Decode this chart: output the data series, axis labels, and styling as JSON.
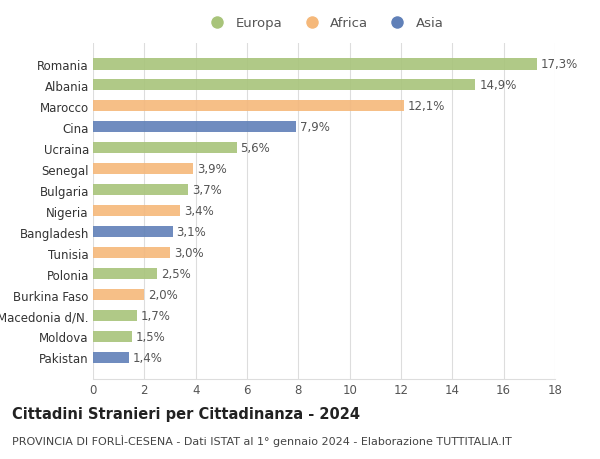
{
  "categories": [
    "Romania",
    "Albania",
    "Marocco",
    "Cina",
    "Ucraina",
    "Senegal",
    "Bulgaria",
    "Nigeria",
    "Bangladesh",
    "Tunisia",
    "Polonia",
    "Burkina Faso",
    "Macedonia d/N.",
    "Moldova",
    "Pakistan"
  ],
  "values": [
    17.3,
    14.9,
    12.1,
    7.9,
    5.6,
    3.9,
    3.7,
    3.4,
    3.1,
    3.0,
    2.5,
    2.0,
    1.7,
    1.5,
    1.4
  ],
  "labels": [
    "17,3%",
    "14,9%",
    "12,1%",
    "7,9%",
    "5,6%",
    "3,9%",
    "3,7%",
    "3,4%",
    "3,1%",
    "3,0%",
    "2,5%",
    "2,0%",
    "1,7%",
    "1,5%",
    "1,4%"
  ],
  "continents": [
    "Europa",
    "Europa",
    "Africa",
    "Asia",
    "Europa",
    "Africa",
    "Europa",
    "Africa",
    "Asia",
    "Africa",
    "Europa",
    "Africa",
    "Europa",
    "Europa",
    "Asia"
  ],
  "colors": {
    "Europa": "#a8c47a",
    "Africa": "#f5b87a",
    "Asia": "#6080b8"
  },
  "xlim": [
    0,
    18
  ],
  "xticks": [
    0,
    2,
    4,
    6,
    8,
    10,
    12,
    14,
    16,
    18
  ],
  "title": "Cittadini Stranieri per Cittadinanza - 2024",
  "subtitle": "PROVINCIA DI FORLÌ-CESENA - Dati ISTAT al 1° gennaio 2024 - Elaborazione TUTTITALIA.IT",
  "background_color": "#ffffff",
  "grid_color": "#dddddd",
  "bar_height": 0.55,
  "label_fontsize": 8.5,
  "ytick_fontsize": 8.5,
  "xtick_fontsize": 8.5,
  "title_fontsize": 10.5,
  "subtitle_fontsize": 8.0,
  "legend_fontsize": 9.5
}
